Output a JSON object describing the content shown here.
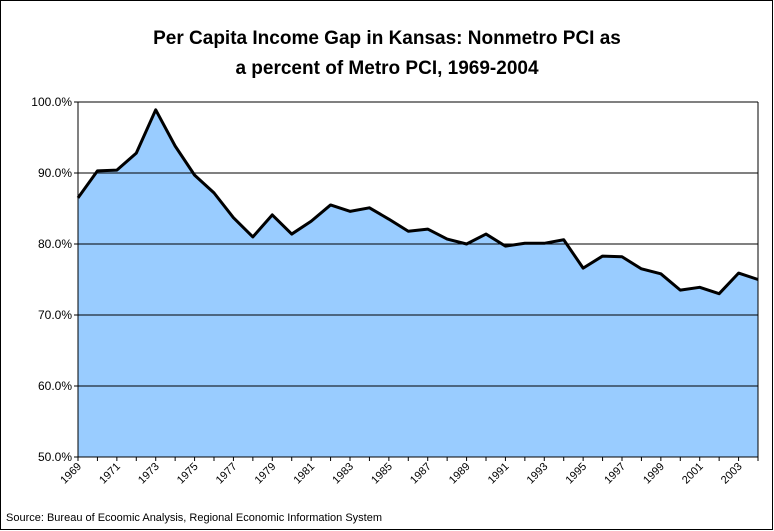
{
  "chart_data": {
    "type": "area",
    "title": [
      "Per Capita Income Gap in Kansas: Nonmetro PCI as",
      "a percent of Metro PCI, 1969-2004"
    ],
    "source": "Source: Bureau of Ecoomic Analysis, Regional Economic Information System",
    "categories": [
      "1969",
      null,
      "1971",
      null,
      "1973",
      null,
      "1975",
      null,
      "1977",
      null,
      "1979",
      null,
      "1981",
      null,
      "1983",
      null,
      "1985",
      null,
      "1987",
      null,
      "1989",
      null,
      "1991",
      null,
      "1993",
      null,
      "1995",
      null,
      "1997",
      null,
      "1999",
      null,
      "2001",
      null,
      "2003",
      null
    ],
    "values": [
      86.5,
      90.3,
      90.4,
      92.8,
      98.9,
      93.8,
      89.7,
      87.2,
      83.7,
      81.0,
      84.1,
      81.4,
      83.2,
      85.5,
      84.6,
      85.1,
      83.5,
      81.8,
      82.1,
      80.7,
      80.0,
      81.4,
      79.7,
      80.1,
      80.1,
      80.6,
      76.6,
      78.3,
      78.2,
      76.5,
      75.8,
      73.5,
      73.9,
      73.0,
      75.9,
      75.0
    ],
    "color": "#99ccff",
    "line_color": "#000000",
    "ylim": [
      50,
      100
    ],
    "yticks": [
      {
        "value": 50,
        "label": "50.0%"
      },
      {
        "value": 60,
        "label": "60.0%"
      },
      {
        "value": 70,
        "label": "70.0%"
      },
      {
        "value": 80,
        "label": "80.0%"
      },
      {
        "value": 90,
        "label": "90.0%"
      },
      {
        "value": 100,
        "label": "100.0%"
      }
    ],
    "grid": true
  }
}
